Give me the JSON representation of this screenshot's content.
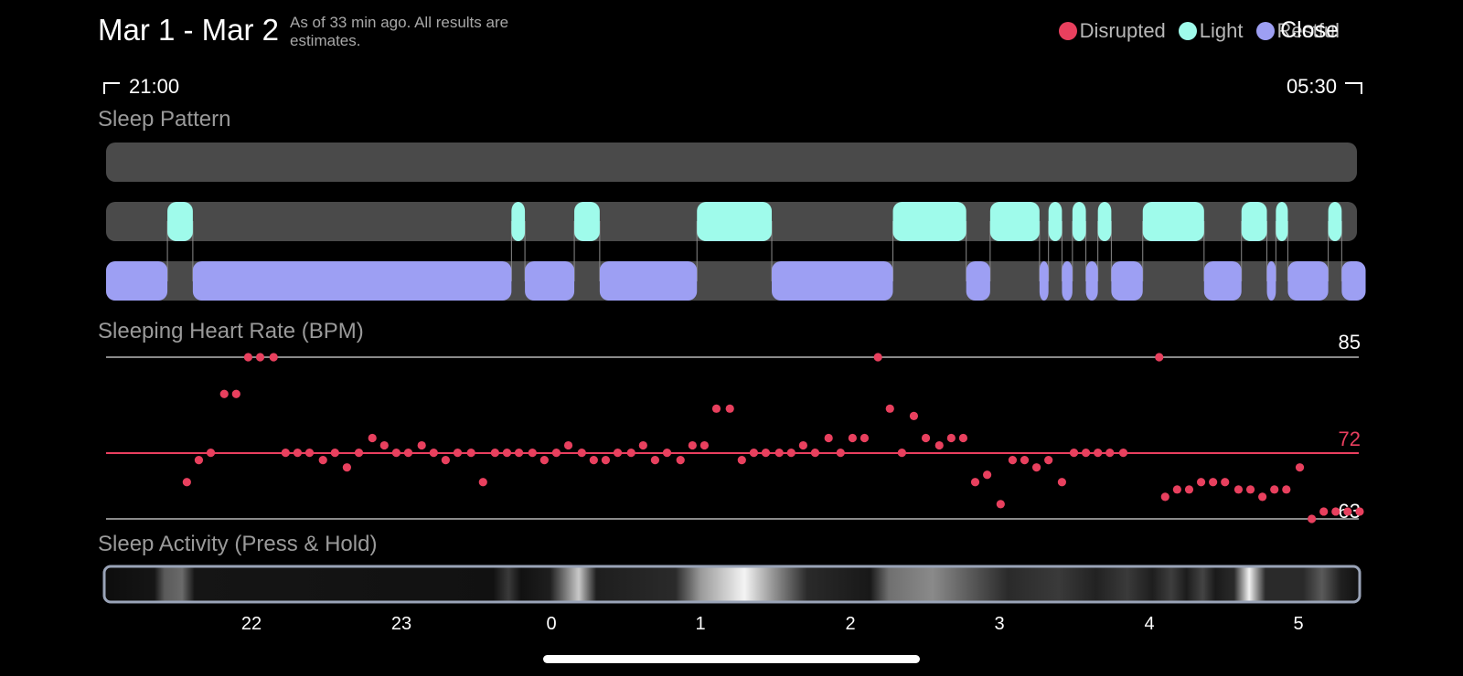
{
  "header": {
    "title": "Mar 1 - Mar 2",
    "subtitle": "As of 33 min ago. All results are estimates.",
    "close_label": "Close"
  },
  "legend": [
    {
      "label": "Disrupted",
      "color": "#e8405e"
    },
    {
      "label": "Light",
      "color": "#9ffbeb"
    },
    {
      "label": "Restful",
      "color": "#9d9ff3"
    }
  ],
  "time_range": {
    "start": "21:00",
    "end": "05:30"
  },
  "sections": {
    "sleep_pattern": "Sleep Pattern",
    "heart_rate": "Sleeping Heart Rate (BPM)",
    "activity": "Sleep Activity (Press & Hold)"
  },
  "heart_rate": {
    "max_label": "85",
    "avg_label": "72",
    "min_label": "63",
    "max": 85,
    "avg": 72,
    "min": 63
  },
  "colors": {
    "track": "#4a4a4a",
    "disrupted": "#e8405e",
    "light": "#9ffbeb",
    "restful": "#9d9ff3"
  },
  "x_ticks": [
    "22",
    "23",
    "0",
    "1",
    "2",
    "3",
    "4",
    "5"
  ],
  "chart_data": [
    {
      "type": "bar",
      "subtype": "timeline",
      "title": "Sleep Pattern",
      "x_unit": "hours since 21:00",
      "xlim": [
        0,
        8.5
      ],
      "series": [
        {
          "name": "Disrupted",
          "segments": []
        },
        {
          "name": "Light",
          "segments": [
            [
              0.41,
              0.58
            ],
            [
              2.71,
              2.8
            ],
            [
              3.13,
              3.3
            ],
            [
              3.95,
              4.45
            ],
            [
              5.26,
              5.75
            ],
            [
              5.91,
              6.24
            ],
            [
              6.3,
              6.39
            ],
            [
              6.46,
              6.55
            ],
            [
              6.63,
              6.72
            ],
            [
              6.93,
              7.34
            ],
            [
              7.59,
              7.76
            ],
            [
              7.82,
              7.9
            ],
            [
              8.17,
              8.26
            ]
          ]
        },
        {
          "name": "Restful",
          "segments": [
            [
              0.0,
              0.41
            ],
            [
              0.58,
              2.71
            ],
            [
              2.8,
              3.13
            ],
            [
              3.3,
              3.95
            ],
            [
              4.45,
              5.26
            ],
            [
              5.75,
              5.91
            ],
            [
              6.24,
              6.3
            ],
            [
              6.39,
              6.46
            ],
            [
              6.55,
              6.63
            ],
            [
              6.72,
              6.93
            ],
            [
              7.34,
              7.59
            ],
            [
              7.76,
              7.82
            ],
            [
              7.9,
              8.17
            ],
            [
              8.26,
              8.42
            ]
          ]
        }
      ]
    },
    {
      "type": "scatter",
      "title": "Sleeping Heart Rate (BPM)",
      "x_unit": "hours since 21:00",
      "ylim": [
        63,
        85
      ],
      "series": [
        {
          "name": "Heart Rate",
          "values": [
            [
              0.54,
              68
            ],
            [
              0.62,
              71
            ],
            [
              0.7,
              72
            ],
            [
              0.79,
              80
            ],
            [
              0.87,
              80
            ],
            [
              0.95,
              85
            ],
            [
              1.03,
              85
            ],
            [
              1.12,
              85
            ],
            [
              1.2,
              72
            ],
            [
              1.28,
              72
            ],
            [
              1.36,
              72
            ],
            [
              1.45,
              71
            ],
            [
              1.53,
              72
            ],
            [
              1.61,
              70
            ],
            [
              1.69,
              72
            ],
            [
              1.78,
              74
            ],
            [
              1.86,
              73
            ],
            [
              1.94,
              72
            ],
            [
              2.02,
              72
            ],
            [
              2.11,
              73
            ],
            [
              2.19,
              72
            ],
            [
              2.27,
              71
            ],
            [
              2.35,
              72
            ],
            [
              2.44,
              72
            ],
            [
              2.52,
              68
            ],
            [
              2.6,
              72
            ],
            [
              2.68,
              72
            ],
            [
              2.76,
              72
            ],
            [
              2.85,
              72
            ],
            [
              2.93,
              71
            ],
            [
              3.01,
              72
            ],
            [
              3.09,
              73
            ],
            [
              3.18,
              72
            ],
            [
              3.26,
              71
            ],
            [
              3.34,
              71
            ],
            [
              3.42,
              72
            ],
            [
              3.51,
              72
            ],
            [
              3.59,
              73
            ],
            [
              3.67,
              71
            ],
            [
              3.75,
              72
            ],
            [
              3.84,
              71
            ],
            [
              3.92,
              73
            ],
            [
              4.0,
              73
            ],
            [
              4.08,
              78
            ],
            [
              4.17,
              78
            ],
            [
              4.25,
              71
            ],
            [
              4.33,
              72
            ],
            [
              4.41,
              72
            ],
            [
              4.5,
              72
            ],
            [
              4.58,
              72
            ],
            [
              4.66,
              73
            ],
            [
              4.74,
              72
            ],
            [
              4.83,
              74
            ],
            [
              4.91,
              72
            ],
            [
              4.99,
              74
            ],
            [
              5.07,
              74
            ],
            [
              5.16,
              85
            ],
            [
              5.24,
              78
            ],
            [
              5.32,
              72
            ],
            [
              5.4,
              77
            ],
            [
              5.48,
              74
            ],
            [
              5.57,
              73
            ],
            [
              5.65,
              74
            ],
            [
              5.73,
              74
            ],
            [
              5.81,
              68
            ],
            [
              5.89,
              69
            ],
            [
              5.98,
              65
            ],
            [
              6.06,
              71
            ],
            [
              6.14,
              71
            ],
            [
              6.22,
              70
            ],
            [
              6.3,
              71
            ],
            [
              6.39,
              68
            ],
            [
              6.47,
              72
            ],
            [
              6.55,
              72
            ],
            [
              6.63,
              72
            ],
            [
              6.71,
              72
            ],
            [
              6.8,
              72
            ],
            [
              7.04,
              85
            ],
            [
              7.08,
              66
            ],
            [
              7.16,
              67
            ],
            [
              7.24,
              67
            ],
            [
              7.32,
              68
            ],
            [
              7.4,
              68
            ],
            [
              7.48,
              68
            ],
            [
              7.57,
              67
            ],
            [
              7.65,
              67
            ],
            [
              7.73,
              66
            ],
            [
              7.81,
              67
            ],
            [
              7.89,
              67
            ],
            [
              7.98,
              70
            ],
            [
              8.06,
              63
            ],
            [
              8.14,
              64
            ],
            [
              8.22,
              64
            ],
            [
              8.3,
              64
            ],
            [
              8.38,
              64
            ]
          ]
        }
      ]
    }
  ]
}
